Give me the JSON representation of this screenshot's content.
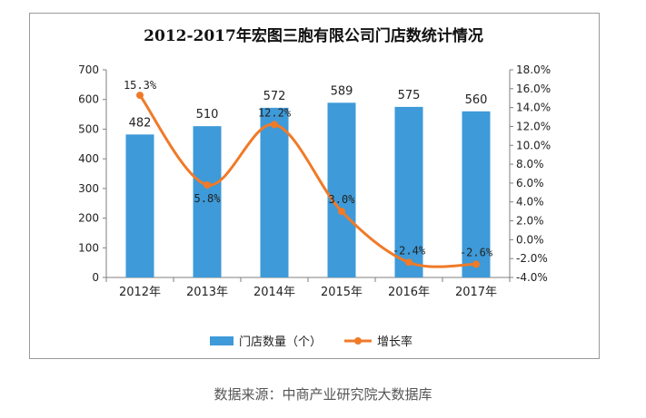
{
  "chart_data": {
    "type": "bar",
    "title": "2012-2017年宏图三胞有限公司门店数统计情况",
    "categories": [
      "2012年",
      "2013年",
      "2014年",
      "2015年",
      "2016年",
      "2017年"
    ],
    "series": [
      {
        "name": "门店数量（个）",
        "type": "bar",
        "axis": "left",
        "color": "#3e9ad8",
        "values": [
          482,
          510,
          572,
          589,
          575,
          560
        ],
        "labels": [
          "482",
          "510",
          "572",
          "589",
          "575",
          "560"
        ]
      },
      {
        "name": "增长率",
        "type": "line",
        "axis": "right",
        "color": "#f07a28",
        "values": [
          15.3,
          5.8,
          12.2,
          3.0,
          -2.4,
          -2.6
        ],
        "labels": [
          "15.3%",
          "5.8%",
          "12.2%",
          "3.0%",
          "-2.4%",
          "-2.6%"
        ]
      }
    ],
    "y_left": {
      "ylim": [
        0,
        700
      ],
      "ticks": [
        0,
        100,
        200,
        300,
        400,
        500,
        600,
        700
      ],
      "tick_labels": [
        "0",
        "100",
        "200",
        "300",
        "400",
        "500",
        "600",
        "700"
      ]
    },
    "y_right": {
      "ylim": [
        -4.0,
        18.0
      ],
      "ticks": [
        -4,
        -2,
        0,
        2,
        4,
        6,
        8,
        10,
        12,
        14,
        16,
        18
      ],
      "tick_labels": [
        "-4.0%",
        "-2.0%",
        "0.0%",
        "2.0%",
        "4.0%",
        "6.0%",
        "8.0%",
        "10.0%",
        "12.0%",
        "14.0%",
        "16.0%",
        "18.0%"
      ]
    },
    "legend_position": "bottom",
    "grid": false
  },
  "source": "数据来源：中商产业研究院大数据库"
}
